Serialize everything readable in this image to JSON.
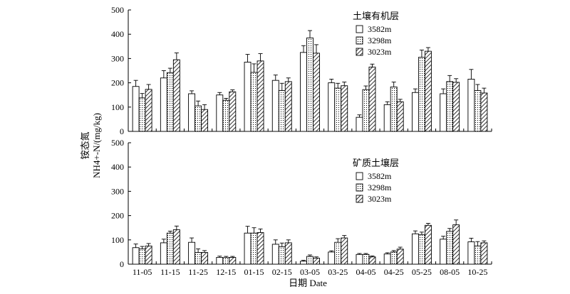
{
  "chart_data": {
    "type": "bar",
    "categories": [
      "11-05",
      "11-15",
      "11-25",
      "12-15",
      "01-15",
      "02-15",
      "03-05",
      "03-25",
      "04-05",
      "04-25",
      "05-25",
      "08-05",
      "10-25"
    ],
    "xlabel": "日期 Date",
    "ylabel_line1": "铵态氮",
    "ylabel_line2": "NH4+-N/(mg/kg)",
    "ylim": [
      0,
      500
    ],
    "yticks": [
      "0",
      "100",
      "200",
      "300",
      "400",
      "500"
    ],
    "colors": {
      "bar_stroke": "#000000",
      "bar_fill": "#ffffff",
      "axis": "#000000"
    },
    "series_labels": [
      "3582m",
      "3298m",
      "3023m"
    ],
    "series_patterns": [
      "blank",
      "dots",
      "diagonal-hatch"
    ],
    "panels": [
      {
        "legend_title": "土壤有机层",
        "series": [
          {
            "name": "3582m",
            "values": [
              185,
              220,
              155,
              150,
              285,
              210,
              325,
              200,
              58,
              110,
              160,
              155,
              215
            ],
            "errors": [
              25,
              30,
              12,
              10,
              32,
              22,
              28,
              15,
              10,
              12,
              15,
              20,
              40
            ]
          },
          {
            "name": "3298m",
            "values": [
              138,
              242,
              105,
              128,
              243,
              168,
              385,
              178,
              172,
              183,
              305,
              205,
              168
            ],
            "errors": [
              18,
              18,
              20,
              8,
              35,
              30,
              30,
              20,
              15,
              20,
              30,
              25,
              25
            ]
          },
          {
            "name": "3023m",
            "values": [
              173,
              295,
              90,
              163,
              290,
              205,
              322,
              188,
              265,
              122,
              330,
              202,
              158
            ],
            "errors": [
              20,
              28,
              20,
              8,
              30,
              15,
              35,
              15,
              12,
              10,
              15,
              15,
              20
            ]
          }
        ]
      },
      {
        "legend_title": "矿质土壤层",
        "series": [
          {
            "name": "3582m",
            "values": [
              68,
              88,
              90,
              28,
              128,
              82,
              12,
              50,
              40,
              42,
              125,
              103,
              92
            ],
            "errors": [
              15,
              15,
              18,
              5,
              28,
              18,
              4,
              5,
              4,
              5,
              12,
              12,
              15
            ]
          },
          {
            "name": "3298m",
            "values": [
              63,
              128,
              48,
              27,
              128,
              72,
              32,
              90,
              40,
              50,
              122,
              135,
              75
            ],
            "errors": [
              10,
              8,
              15,
              5,
              22,
              15,
              6,
              15,
              4,
              6,
              10,
              12,
              18
            ]
          },
          {
            "name": "3023m",
            "values": [
              75,
              142,
              48,
              28,
              130,
              88,
              25,
              108,
              30,
              62,
              160,
              162,
              88
            ],
            "errors": [
              10,
              15,
              8,
              4,
              15,
              12,
              5,
              10,
              4,
              8,
              8,
              20,
              8
            ]
          }
        ]
      }
    ]
  }
}
